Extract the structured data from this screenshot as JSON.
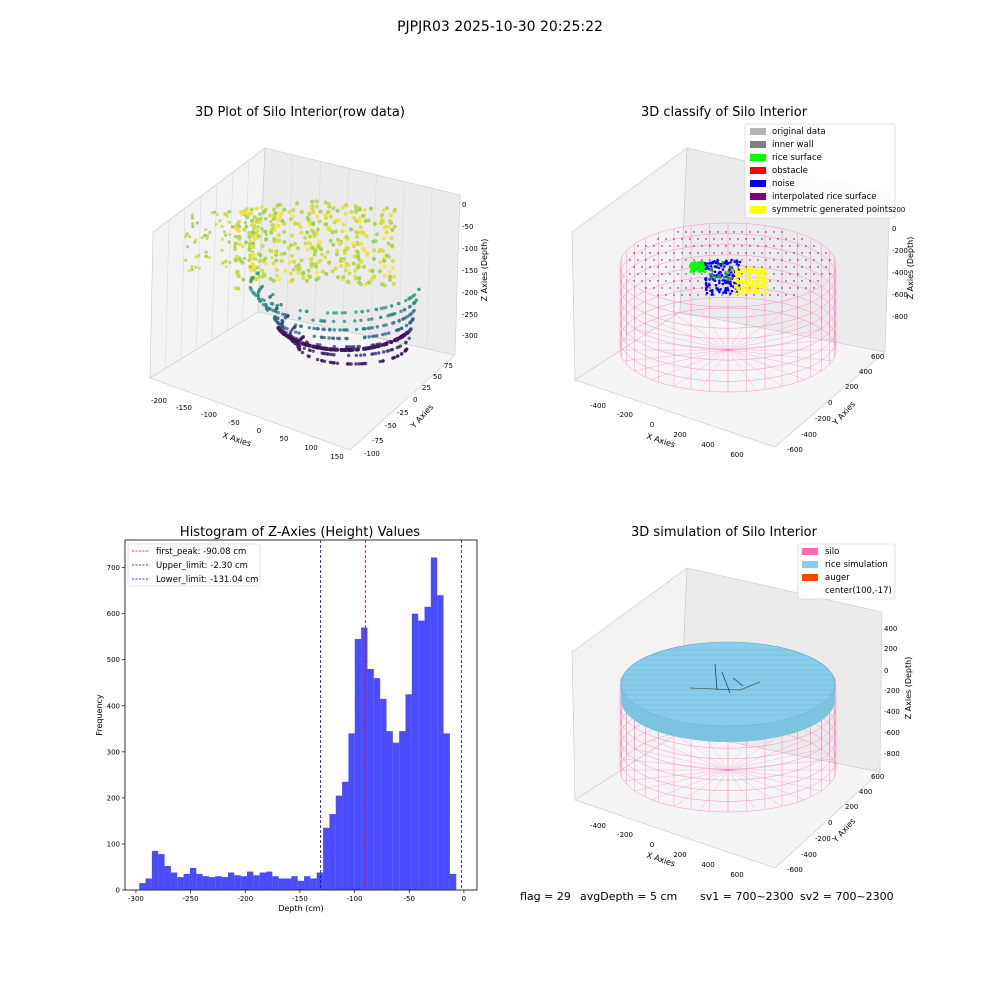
{
  "figure": {
    "suptitle": "PJPJR03 2025-10-30 20:25:22",
    "status": {
      "flag": "flag = 29",
      "avg_depth": "avgDepth = 5 cm",
      "sv1": "sv1 = 700~2300",
      "sv2": "sv2 = 700~2300"
    }
  },
  "panels": {
    "raw": {
      "title": "3D Plot of Silo Interior(row data)",
      "xlabel": "X Axies",
      "ylabel": "Y Axies",
      "zlabel": "Z Axies (Depth)",
      "xticks": [
        "-200",
        "-150",
        "-100",
        "-50",
        "0",
        "50",
        "100",
        "150"
      ],
      "yticks": [
        "-100",
        "-75",
        "-50",
        "-25",
        "0",
        "25",
        "50",
        "75"
      ],
      "zticks": [
        "0",
        "-50",
        "-100",
        "-150",
        "-200",
        "-250",
        "-300"
      ],
      "colormap": [
        "#440154",
        "#31688e",
        "#35b779",
        "#fde725"
      ]
    },
    "classify": {
      "title": "3D classify of Silo Interior",
      "xlabel": "X Axies",
      "ylabel": "Y Axies",
      "zlabel": "Z Axies (Depth)",
      "xticks": [
        "-400",
        "-200",
        "0",
        "200",
        "400",
        "600"
      ],
      "yticks": [
        "-600",
        "-400",
        "-200",
        "0",
        "200",
        "400",
        "600"
      ],
      "zticks": [
        "200",
        "0",
        "-200",
        "-400",
        "-600",
        "-800"
      ],
      "legend": [
        {
          "label": "original data",
          "color": "#b3b3b3"
        },
        {
          "label": "inner wall",
          "color": "#808080"
        },
        {
          "label": "rice surface",
          "color": "#00ff00"
        },
        {
          "label": "obstacle",
          "color": "#ff0000"
        },
        {
          "label": "noise",
          "color": "#0000ff"
        },
        {
          "label": "interpolated rice surface",
          "color": "#800080"
        },
        {
          "label": "symmetric generated points",
          "color": "#ffff00"
        }
      ]
    },
    "simulation": {
      "title": "3D simulation of Silo Interior",
      "xlabel": "X Axies",
      "ylabel": "Y Axies",
      "zlabel": "Z Axies (Depth)",
      "xticks": [
        "-400",
        "-200",
        "0",
        "200",
        "400",
        "600"
      ],
      "yticks": [
        "-600",
        "-400",
        "-200",
        "0",
        "200",
        "400",
        "600"
      ],
      "zticks": [
        "400",
        "200",
        "0",
        "-200",
        "-400",
        "-600",
        "-800"
      ],
      "legend": [
        {
          "label": "silo",
          "color": "#ff69b4"
        },
        {
          "label": "rice simulation",
          "color": "#87ceeb"
        },
        {
          "label": "auger",
          "color": "#ff4500"
        },
        {
          "label": "center(100,-17)",
          "color": ""
        }
      ]
    }
  },
  "chart_data": {
    "type": "bar",
    "title": "Histogram of Z-Axies (Height) Values",
    "xlabel": "Depth (cm)",
    "ylabel": "Frequency",
    "xlim": [
      -310,
      12
    ],
    "ylim": [
      0,
      760
    ],
    "xticks": [
      -300,
      -250,
      -200,
      -150,
      -100,
      -50,
      0
    ],
    "yticks": [
      0,
      100,
      200,
      300,
      400,
      500,
      600,
      700
    ],
    "bar_color": "#0000ff",
    "bin_width": 5.8,
    "bin_start": -297,
    "values": [
      15,
      25,
      85,
      78,
      52,
      38,
      28,
      35,
      48,
      35,
      30,
      28,
      30,
      28,
      38,
      32,
      30,
      40,
      32,
      38,
      40,
      30,
      25,
      25,
      30,
      20,
      30,
      25,
      38,
      135,
      165,
      205,
      235,
      340,
      545,
      570,
      480,
      460,
      415,
      345,
      320,
      345,
      425,
      600,
      585,
      615,
      722,
      640,
      340,
      35
    ],
    "lines": [
      {
        "label": "first_peak: -90.08 cm",
        "x": -90.08,
        "color": "#ff0000"
      },
      {
        "label": "Upper_limit: -2.30 cm",
        "x": -2.3,
        "color": "#0000cc"
      },
      {
        "label": "Lower_limit: -131.04 cm",
        "x": -131.04,
        "color": "#0000cc"
      }
    ],
    "legend_position": "upper-left"
  }
}
